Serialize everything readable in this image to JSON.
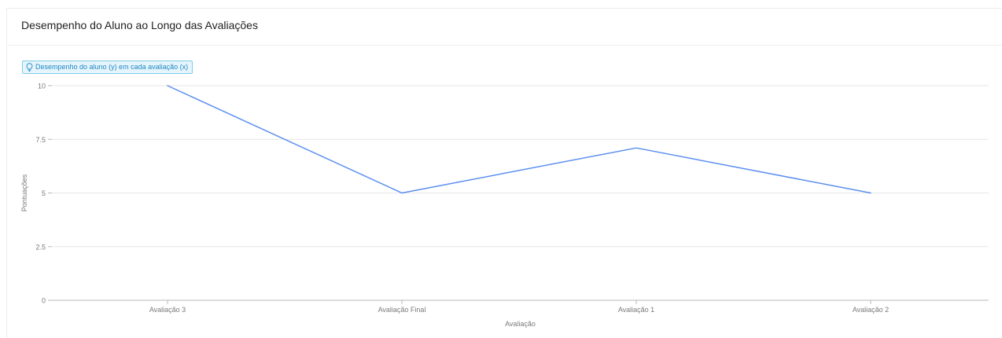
{
  "card": {
    "title": "Desempenho do Aluno ao Longo das Avaliações"
  },
  "hint": {
    "icon": "lightbulb-icon",
    "text": "Desempenho do aluno (y) em cada avaliação (x)"
  },
  "colors": {
    "line": "#5b8ff0",
    "grid": "#e6e6e6",
    "axis": "#b8b8b8",
    "badge_bg": "#e6f5fc",
    "badge_border": "#7dcbe9",
    "badge_text": "#1f86c4"
  },
  "chart_data": {
    "type": "line",
    "title": "",
    "xlabel": "Avaliação",
    "ylabel": "Pontuações",
    "categories": [
      "Avaliação 3",
      "Avaliação Final",
      "Avaliação 1",
      "Avaliação 2"
    ],
    "series": [
      {
        "values": [
          10,
          5,
          7.1,
          5
        ]
      }
    ],
    "ylim": [
      0,
      10
    ],
    "yticks": [
      "0",
      "2.5",
      "5",
      "7.5",
      "10"
    ],
    "grid": true,
    "legend": "none"
  }
}
